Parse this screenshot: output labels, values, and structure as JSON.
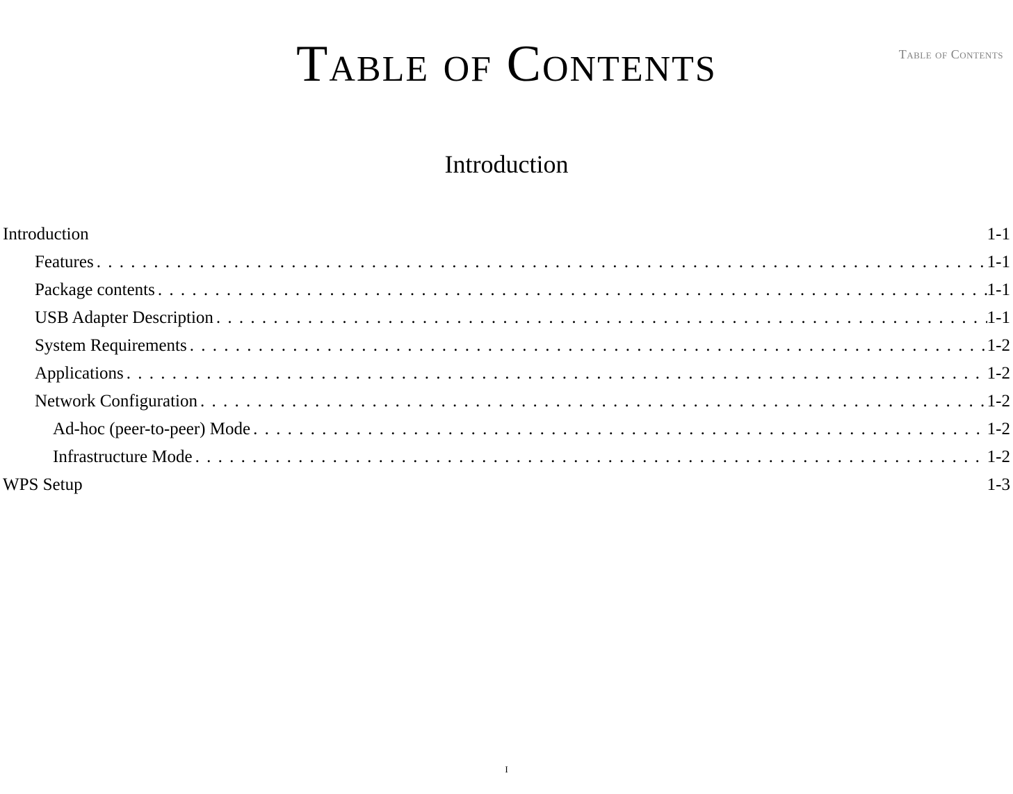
{
  "header_label": "Table of Contents",
  "main_title": "Table of Contents",
  "section_header": "Introduction",
  "toc": {
    "entries": [
      {
        "label": "Introduction",
        "page": "1-1",
        "level": 0,
        "leader": "none"
      },
      {
        "label": "Features",
        "page": "1-1",
        "level": 1,
        "leader": "dots"
      },
      {
        "label": "Package contents",
        "page": "1-1",
        "level": 1,
        "leader": "dots"
      },
      {
        "label": "USB Adapter Description",
        "page": "1-1",
        "level": 1,
        "leader": "dots"
      },
      {
        "label": "System Requirements",
        "page": "1-2",
        "level": 1,
        "leader": "dots"
      },
      {
        "label": "Applications",
        "page": "1-2",
        "level": 1,
        "leader": "dots"
      },
      {
        "label": "Network Configuration",
        "page": "1-2",
        "level": 1,
        "leader": "dots"
      },
      {
        "label": "Ad-hoc (peer-to-peer) Mode",
        "page": "1-2",
        "level": 2,
        "leader": "dots"
      },
      {
        "label": "Infrastructure Mode",
        "page": "1-2",
        "level": 2,
        "leader": "dots"
      },
      {
        "label": "WPS Setup",
        "page": "1-3",
        "level": 0,
        "leader": "none"
      }
    ]
  },
  "page_number": "i",
  "colors": {
    "background": "#ffffff",
    "text": "#000000",
    "header_text": "#808080"
  },
  "typography": {
    "font_family": "Georgia, 'Times New Roman', serif",
    "main_title_fontsize": 74,
    "section_header_fontsize": 36,
    "toc_fontsize": 25,
    "header_fontsize": 18,
    "page_number_fontsize": 18
  }
}
